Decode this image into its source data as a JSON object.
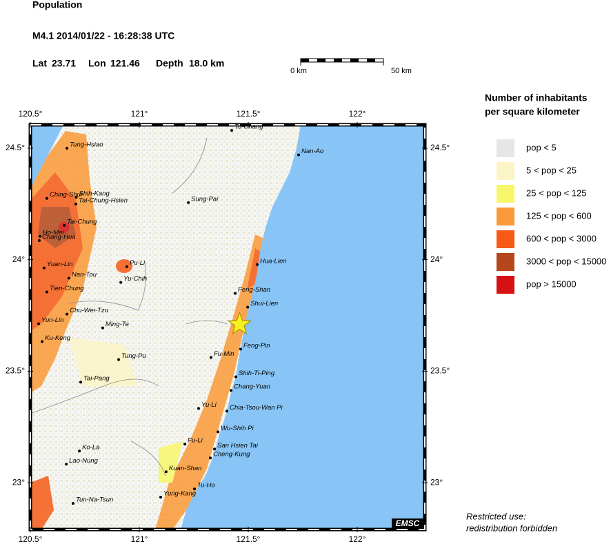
{
  "header": {
    "title": "Population",
    "event": "M4.1  2014/01/22 - 16:28:38 UTC",
    "lat_label": "Lat",
    "lat": 23.71,
    "lon_label": "Lon",
    "lon": 121.46,
    "depth_label": "Depth",
    "depth": "18.0 km"
  },
  "scale_bar": {
    "start": "0 km",
    "end": "50 km"
  },
  "map": {
    "lon_range": [
      120.5,
      122.31
    ],
    "lat_range": [
      22.79,
      24.605
    ],
    "lon_ticks": [
      {
        "value": 120.5,
        "label": "120.5°"
      },
      {
        "value": 121,
        "label": "121°"
      },
      {
        "value": 121.5,
        "label": "121.5°"
      },
      {
        "value": 122,
        "label": "122°"
      }
    ],
    "lat_ticks": [
      {
        "value": 24.5,
        "label": "24.5°"
      },
      {
        "value": 24,
        "label": "24°"
      },
      {
        "value": 23.5,
        "label": "23.5°"
      },
      {
        "value": 23,
        "label": "23°"
      }
    ],
    "cities": [
      {
        "name": "Tu-Chang",
        "lon": 121.424,
        "lat": 24.58
      },
      {
        "name": "Nan-Ao",
        "lon": 121.731,
        "lat": 24.47
      },
      {
        "name": "Tung-Hsiao",
        "lon": 120.668,
        "lat": 24.5
      },
      {
        "name": "Ching-Shui",
        "lon": 120.576,
        "lat": 24.275
      },
      {
        "name": "Shih-Kang",
        "lon": 120.71,
        "lat": 24.28
      },
      {
        "name": "Tai-Chung-Hsien",
        "lon": 120.709,
        "lat": 24.25
      },
      {
        "name": "Sung-Pai",
        "lon": 121.225,
        "lat": 24.256
      },
      {
        "name": "Tai-Chung",
        "lon": 120.655,
        "lat": 24.154
      },
      {
        "name": "Ho-Mei",
        "lon": 120.544,
        "lat": 24.105
      },
      {
        "name": "Chang-Hua",
        "lon": 120.541,
        "lat": 24.086
      },
      {
        "name": "Pu-Li",
        "lon": 120.943,
        "lat": 23.969
      },
      {
        "name": "Hua-Lien",
        "lon": 121.541,
        "lat": 23.978
      },
      {
        "name": "Yuan-Lin",
        "lon": 120.563,
        "lat": 23.963
      },
      {
        "name": "Nan-Tou",
        "lon": 120.677,
        "lat": 23.917
      },
      {
        "name": "Yu-Chih",
        "lon": 120.915,
        "lat": 23.898
      },
      {
        "name": "Tien-Chung",
        "lon": 120.576,
        "lat": 23.855
      },
      {
        "name": "Feng-Shan",
        "lon": 121.44,
        "lat": 23.849
      },
      {
        "name": "Shui-Lien",
        "lon": 121.497,
        "lat": 23.787
      },
      {
        "name": "Chu-Wei-Tzu",
        "lon": 120.668,
        "lat": 23.756
      },
      {
        "name": "Yun-Lin",
        "lon": 120.538,
        "lat": 23.713
      },
      {
        "name": "Ming-Te",
        "lon": 120.832,
        "lat": 23.694
      },
      {
        "name": "Ku-Keng",
        "lon": 120.554,
        "lat": 23.633
      },
      {
        "name": "Feng-Pin",
        "lon": 121.465,
        "lat": 23.599
      },
      {
        "name": "Fu-Min",
        "lon": 121.329,
        "lat": 23.562
      },
      {
        "name": "Tung-Pu",
        "lon": 120.905,
        "lat": 23.552
      },
      {
        "name": "Shih-Ti-Ping",
        "lon": 121.443,
        "lat": 23.475
      },
      {
        "name": "Tai-Pang",
        "lon": 120.731,
        "lat": 23.451
      },
      {
        "name": "Chang-Yuan",
        "lon": 121.421,
        "lat": 23.414
      },
      {
        "name": "Yu-Li",
        "lon": 121.272,
        "lat": 23.333
      },
      {
        "name": "Chia-Tsou-Wan Pi",
        "lon": 121.402,
        "lat": 23.321
      },
      {
        "name": "Wu-Shih Pi",
        "lon": 121.361,
        "lat": 23.228
      },
      {
        "name": "Ko-La",
        "lon": 120.725,
        "lat": 23.142
      },
      {
        "name": "Fu-Li",
        "lon": 121.209,
        "lat": 23.173
      },
      {
        "name": "San Hsien Tai",
        "lon": 121.345,
        "lat": 23.151
      },
      {
        "name": "Cheng-Kung",
        "lon": 121.326,
        "lat": 23.111
      },
      {
        "name": "Lao-Nung",
        "lon": 120.665,
        "lat": 23.083
      },
      {
        "name": "Kuan-Shan",
        "lon": 121.123,
        "lat": 23.049
      },
      {
        "name": "Tu-Ho",
        "lon": 121.253,
        "lat": 22.972
      },
      {
        "name": "Yung-Kang",
        "lon": 121.098,
        "lat": 22.935
      },
      {
        "name": "Tun-Na-Tsun",
        "lon": 120.696,
        "lat": 22.907
      }
    ],
    "credit": "EMSC"
  },
  "legend": {
    "title": [
      "Number of inhabitants",
      "per square kilometer"
    ],
    "items": [
      {
        "label": "pop < 5",
        "color": "#e6e6e6"
      },
      {
        "label": "5 < pop < 25",
        "color": "#fbf5c6"
      },
      {
        "label": "25 < pop < 125",
        "color": "#f8f66a"
      },
      {
        "label": "125 < pop < 600",
        "color": "#fb9a38"
      },
      {
        "label": "600 < pop < 3000",
        "color": "#f65a16"
      },
      {
        "label": "3000 < pop < 15000",
        "color": "#b5471b"
      },
      {
        "label": "pop > 15000",
        "color": "#d61111"
      }
    ]
  },
  "footer": [
    "Restricted use:",
    "redistribution forbidden"
  ]
}
